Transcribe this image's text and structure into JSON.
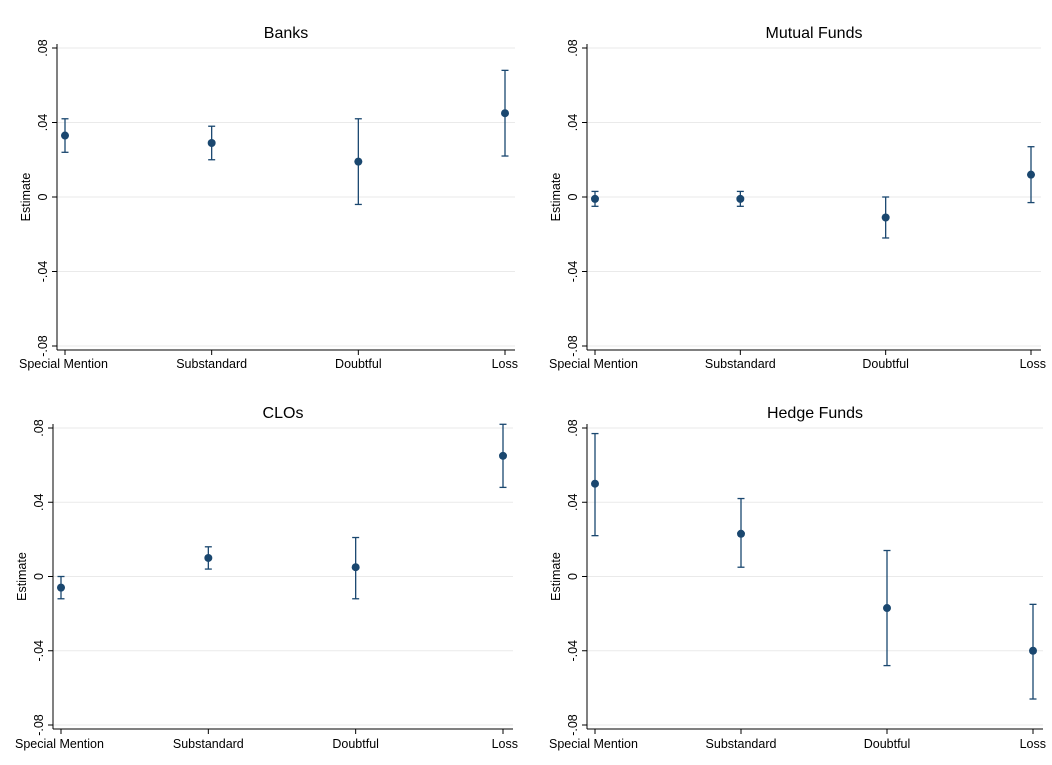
{
  "colors": {
    "marker": "#1a476f",
    "grid": "#eaeaea",
    "axis": "#000000",
    "background": "#ffffff"
  },
  "chart_data": [
    {
      "type": "scatter",
      "title": "Banks",
      "ylabel": "Estimate",
      "xlabel": "",
      "categories": [
        "Special Mention",
        "Substandard",
        "Doubtful",
        "Loss"
      ],
      "ylim": [
        -0.08,
        0.08
      ],
      "yticks": [
        0.08,
        0.04,
        0,
        -0.04,
        -0.08
      ],
      "ytick_labels": [
        ".08",
        ".04",
        "0",
        "-.04",
        "-.08"
      ],
      "grid": true,
      "legend": "none",
      "points": [
        {
          "category": "Special Mention",
          "estimate": 0.033,
          "ci_low": 0.024,
          "ci_high": 0.042
        },
        {
          "category": "Substandard",
          "estimate": 0.029,
          "ci_low": 0.02,
          "ci_high": 0.038
        },
        {
          "category": "Doubtful",
          "estimate": 0.019,
          "ci_low": -0.004,
          "ci_high": 0.042
        },
        {
          "category": "Loss",
          "estimate": 0.045,
          "ci_low": 0.022,
          "ci_high": 0.068
        }
      ]
    },
    {
      "type": "scatter",
      "title": "Mutual Funds",
      "ylabel": "Estimate",
      "xlabel": "",
      "categories": [
        "Special Mention",
        "Substandard",
        "Doubtful",
        "Loss"
      ],
      "ylim": [
        -0.08,
        0.08
      ],
      "yticks": [
        0.08,
        0.04,
        0,
        -0.04,
        -0.08
      ],
      "ytick_labels": [
        ".08",
        ".04",
        "0",
        "-.04",
        "-.08"
      ],
      "grid": true,
      "legend": "none",
      "points": [
        {
          "category": "Special Mention",
          "estimate": -0.001,
          "ci_low": -0.005,
          "ci_high": 0.003
        },
        {
          "category": "Substandard",
          "estimate": -0.001,
          "ci_low": -0.005,
          "ci_high": 0.003
        },
        {
          "category": "Doubtful",
          "estimate": -0.011,
          "ci_low": -0.022,
          "ci_high": 0.0
        },
        {
          "category": "Loss",
          "estimate": 0.012,
          "ci_low": -0.003,
          "ci_high": 0.027
        }
      ]
    },
    {
      "type": "scatter",
      "title": "CLOs",
      "ylabel": "Estimate",
      "xlabel": "",
      "categories": [
        "Special Mention",
        "Substandard",
        "Doubtful",
        "Loss"
      ],
      "ylim": [
        -0.08,
        0.08
      ],
      "yticks": [
        0.08,
        0.04,
        0,
        -0.04,
        -0.08
      ],
      "ytick_labels": [
        ".08",
        ".04",
        "0",
        "-.04",
        "-.08"
      ],
      "grid": true,
      "legend": "none",
      "points": [
        {
          "category": "Special Mention",
          "estimate": -0.006,
          "ci_low": -0.012,
          "ci_high": 0.0
        },
        {
          "category": "Substandard",
          "estimate": 0.01,
          "ci_low": 0.004,
          "ci_high": 0.016
        },
        {
          "category": "Doubtful",
          "estimate": 0.005,
          "ci_low": -0.012,
          "ci_high": 0.021
        },
        {
          "category": "Loss",
          "estimate": 0.065,
          "ci_low": 0.048,
          "ci_high": 0.082
        }
      ]
    },
    {
      "type": "scatter",
      "title": "Hedge Funds",
      "ylabel": "Estimate",
      "xlabel": "",
      "categories": [
        "Special Mention",
        "Substandard",
        "Doubtful",
        "Loss"
      ],
      "ylim": [
        -0.08,
        0.08
      ],
      "yticks": [
        0.08,
        0.04,
        0,
        -0.04,
        -0.08
      ],
      "ytick_labels": [
        ".08",
        ".04",
        "0",
        "-.04",
        "-.08"
      ],
      "grid": true,
      "legend": "none",
      "points": [
        {
          "category": "Special Mention",
          "estimate": 0.05,
          "ci_low": 0.022,
          "ci_high": 0.077
        },
        {
          "category": "Substandard",
          "estimate": 0.023,
          "ci_low": 0.005,
          "ci_high": 0.042
        },
        {
          "category": "Doubtful",
          "estimate": -0.017,
          "ci_low": -0.048,
          "ci_high": 0.014
        },
        {
          "category": "Loss",
          "estimate": -0.04,
          "ci_low": -0.066,
          "ci_high": -0.015
        }
      ]
    }
  ]
}
